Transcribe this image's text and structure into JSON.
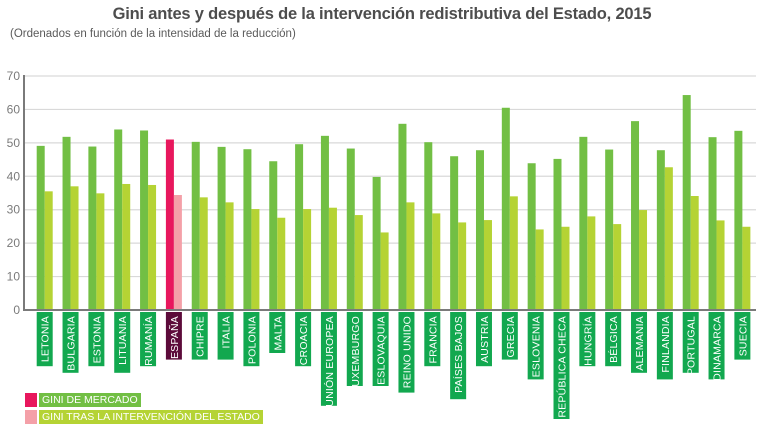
{
  "chart_data": {
    "type": "bar",
    "title": "Gini antes y después de la intervención redistributiva del Estado, 2015",
    "subtitle": "(Ordenados en función de la intensidad de la reducción)",
    "xlabel": "",
    "ylabel": "",
    "ylim": [
      0,
      70
    ],
    "yticks": [
      0,
      10,
      20,
      30,
      40,
      50,
      60,
      70
    ],
    "grid": true,
    "legend_position": "bottom-left",
    "categories": [
      "LETONIA",
      "BULGARIA",
      "ESTONIA",
      "LITUANIA",
      "RUMANÍA",
      "ESPAÑA",
      "CHIPRE",
      "ITALIA",
      "POLONIA",
      "MALTA",
      "CROACIA",
      "UNIÓN EUROPEA",
      "LUXEMBURGO",
      "ESLOVAQUIA",
      "REINO UNIDO",
      "FRANCIA",
      "PAÍSES BAJOS",
      "AUSTRIA",
      "GRECIA",
      "ESLOVENIA",
      "REPÚBLICA CHECA",
      "HUNGRÍA",
      "BÉLGICA",
      "ALEMANIA",
      "FINLANDIA",
      "PORTUGAL",
      "DINAMARCA",
      "SUECIA"
    ],
    "highlight_category": "ESPAÑA",
    "series": [
      {
        "name": "GINI DE MERCADO",
        "values": [
          49.1,
          51.8,
          48.9,
          54.0,
          53.7,
          51.0,
          50.3,
          48.8,
          48.1,
          44.5,
          49.6,
          52.1,
          48.3,
          39.8,
          55.7,
          50.2,
          46.0,
          47.8,
          60.5,
          43.9,
          45.2,
          51.8,
          48.0,
          56.5,
          47.8,
          64.3,
          51.7,
          53.6
        ]
      },
      {
        "name": "GINI TRAS LA INTERVENCIÓN DEL ESTADO",
        "values": [
          35.5,
          37.0,
          34.9,
          37.7,
          37.4,
          34.4,
          33.7,
          32.2,
          30.2,
          27.6,
          30.2,
          30.6,
          28.4,
          23.2,
          32.2,
          28.9,
          26.2,
          26.9,
          34.0,
          24.1,
          24.9,
          28.0,
          25.7,
          29.9,
          42.7,
          34.1,
          26.8,
          24.9
        ]
      }
    ]
  },
  "colors": {
    "market": "#72bf44",
    "after": "#b5d334",
    "highlight_market": "#e8175d",
    "highlight_after": "#f4a0a8",
    "label_bg": "#12a84f",
    "highlight_label_bg": "#5c0a3a",
    "grid": "#d9d9d9",
    "axis": "#7a7a7a"
  },
  "legend": [
    {
      "label": "GINI DE MERCADO",
      "swatch": "#e8175d",
      "bg": "#72bf44"
    },
    {
      "label": "GINI TRAS LA INTERVENCIÓN DEL ESTADO",
      "swatch": "#f4a0a8",
      "bg": "#b5d334"
    }
  ]
}
